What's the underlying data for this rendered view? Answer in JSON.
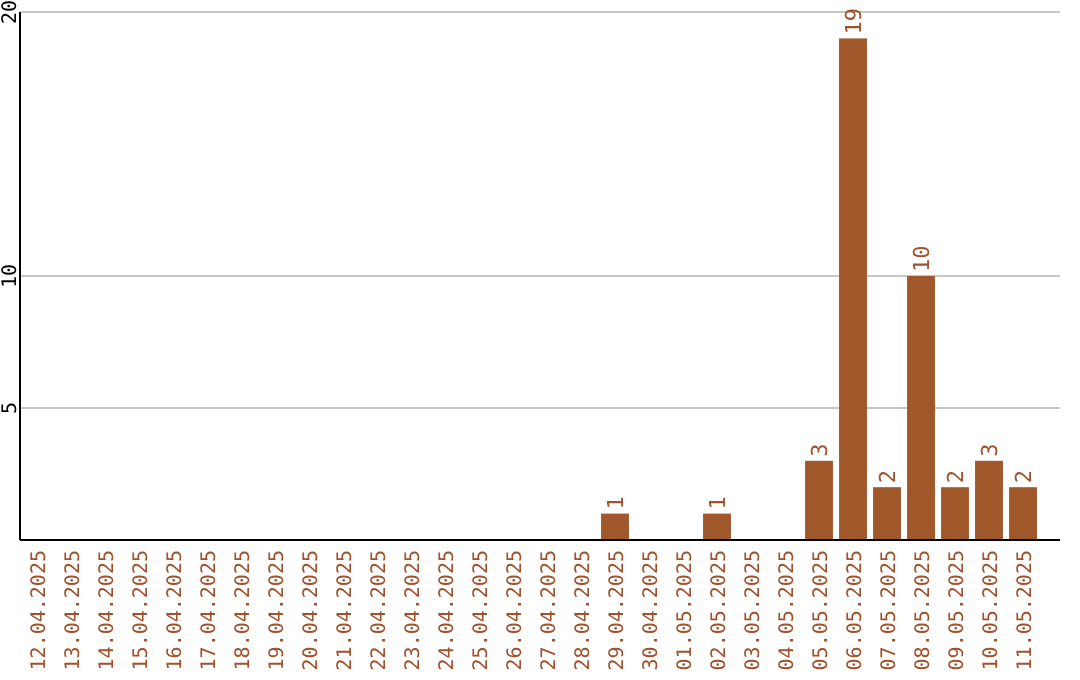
{
  "chart_data": {
    "type": "bar",
    "categories": [
      "12.04.2025",
      "13.04.2025",
      "14.04.2025",
      "15.04.2025",
      "16.04.2025",
      "17.04.2025",
      "18.04.2025",
      "19.04.2025",
      "20.04.2025",
      "21.04.2025",
      "22.04.2025",
      "23.04.2025",
      "24.04.2025",
      "25.04.2025",
      "26.04.2025",
      "27.04.2025",
      "28.04.2025",
      "29.04.2025",
      "30.04.2025",
      "01.05.2025",
      "02.05.2025",
      "03.05.2025",
      "04.05.2025",
      "05.05.2025",
      "06.05.2025",
      "07.05.2025",
      "08.05.2025",
      "09.05.2025",
      "10.05.2025",
      "11.05.2025"
    ],
    "values": [
      0,
      0,
      0,
      0,
      0,
      0,
      0,
      0,
      0,
      0,
      0,
      0,
      0,
      0,
      0,
      0,
      0,
      1,
      0,
      0,
      1,
      0,
      0,
      3,
      19,
      2,
      10,
      2,
      3,
      2
    ],
    "value_labels": [
      null,
      null,
      null,
      null,
      null,
      null,
      null,
      null,
      null,
      null,
      null,
      null,
      null,
      null,
      null,
      null,
      null,
      "1",
      null,
      null,
      "1",
      null,
      null,
      "3",
      "19",
      "2",
      "10",
      "2",
      "3",
      "2"
    ],
    "color": "#a0572a",
    "ylim": [
      0,
      20
    ],
    "yticks": [
      5,
      10,
      20
    ],
    "grid": "y"
  }
}
